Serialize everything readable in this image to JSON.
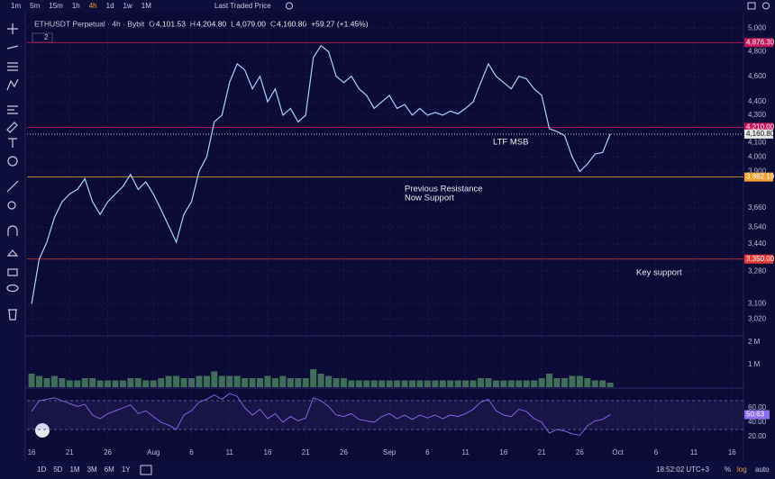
{
  "toolbar": {
    "intervals": [
      "1m",
      "5m",
      "15m",
      "1h",
      "4h",
      "1d",
      "1w",
      "1M"
    ],
    "active_interval": 4,
    "price_source": "Last Traded Price"
  },
  "header": {
    "symbol": "ETHUSDT Perpetual · 4h · Bybit",
    "o_key": "O",
    "o": "4,101.53",
    "h_key": "H",
    "h": "4,204.80",
    "l_key": "L",
    "l": "4,079.00",
    "c_key": "C",
    "c": "4,160.80",
    "change": "+59.27 (+1.45%)",
    "badge": "2"
  },
  "footer": {
    "ranges": [
      "1D",
      "5D",
      "1M",
      "3M",
      "6M",
      "1Y"
    ],
    "clock": "18:52:02 UTC+3",
    "percent": "%",
    "log": "log",
    "auto": "auto"
  },
  "chart_data": [
    {
      "type": "line",
      "log_scale": true,
      "color": "#a8d4ff",
      "xlim": [
        -0.6,
        93.5
      ],
      "xticks": [
        {
          "value": 0,
          "label": "16"
        },
        {
          "value": 5,
          "label": "21"
        },
        {
          "value": 10,
          "label": "26"
        },
        {
          "value": 16,
          "label": "Aug"
        },
        {
          "value": 21,
          "label": "6"
        },
        {
          "value": 26,
          "label": "11"
        },
        {
          "value": 31,
          "label": "16"
        },
        {
          "value": 36,
          "label": "21"
        },
        {
          "value": 41,
          "label": "26"
        },
        {
          "value": 47,
          "label": "Sep"
        },
        {
          "value": 52,
          "label": "6"
        },
        {
          "value": 57,
          "label": "11"
        },
        {
          "value": 62,
          "label": "16"
        },
        {
          "value": 67,
          "label": "21"
        },
        {
          "value": 72,
          "label": "26"
        },
        {
          "value": 77,
          "label": "Oct"
        },
        {
          "value": 82,
          "label": "6"
        },
        {
          "value": 87,
          "label": "11"
        },
        {
          "value": 92,
          "label": "16"
        }
      ],
      "ylim": [
        2937,
        5057
      ],
      "yticks": [
        {
          "value": 5000,
          "label": "5,000"
        },
        {
          "value": 4800,
          "label": "4,800"
        },
        {
          "value": 4600,
          "label": "4,600"
        },
        {
          "value": 4400,
          "label": "4,400"
        },
        {
          "value": 4300,
          "label": "4,300"
        },
        {
          "value": 4100,
          "label": "4,100"
        },
        {
          "value": 4000,
          "label": "4,000"
        },
        {
          "value": 3900,
          "label": "3,900"
        },
        {
          "value": 3660,
          "label": "3,660"
        },
        {
          "value": 3540,
          "label": "3,540"
        },
        {
          "value": 3440,
          "label": "3,440"
        },
        {
          "value": 3280,
          "label": "3,280"
        },
        {
          "value": 3100,
          "label": "3,100"
        },
        {
          "value": 3020,
          "label": "3,020"
        }
      ],
      "grid": true,
      "x": [
        0,
        1,
        2,
        3,
        4,
        5,
        6,
        7,
        8,
        9,
        10,
        11,
        12,
        13,
        14,
        15,
        16,
        17,
        18,
        19,
        20,
        21,
        22,
        23,
        24,
        25,
        26,
        27,
        28,
        29,
        30,
        31,
        32,
        33,
        34,
        35,
        36,
        37,
        38,
        39,
        40,
        41,
        42,
        43,
        44,
        45,
        46,
        47,
        48,
        49,
        50,
        51,
        52,
        53,
        54,
        55,
        56,
        57,
        58,
        59,
        60,
        61,
        62,
        63,
        64,
        65,
        66,
        67,
        68,
        69,
        70,
        71,
        72,
        73,
        74,
        75,
        76
      ],
      "values": [
        3100,
        3350,
        3450,
        3600,
        3700,
        3750,
        3780,
        3850,
        3700,
        3620,
        3700,
        3750,
        3800,
        3880,
        3780,
        3830,
        3750,
        3650,
        3550,
        3450,
        3620,
        3700,
        3900,
        4000,
        4250,
        4300,
        4550,
        4700,
        4650,
        4500,
        4600,
        4400,
        4500,
        4300,
        4350,
        4250,
        4300,
        4750,
        4850,
        4800,
        4600,
        4550,
        4600,
        4500,
        4450,
        4350,
        4400,
        4450,
        4350,
        4380,
        4300,
        4350,
        4300,
        4320,
        4300,
        4330,
        4310,
        4350,
        4400,
        4550,
        4700,
        4600,
        4550,
        4500,
        4600,
        4580,
        4500,
        4450,
        4200,
        4180,
        4150,
        4000,
        3900,
        3950,
        4020,
        4030,
        4160.8
      ],
      "levels": [
        {
          "value": 4876.3,
          "label": "4,876.30",
          "color": "#c2185b"
        },
        {
          "value": 4210,
          "label": "4,210.00",
          "color": "#c2185b"
        },
        {
          "value": 4160.8,
          "label": "4,160.80",
          "color": "#e6e6e6"
        },
        {
          "value": 3862.19,
          "label": "3,862.19",
          "color": "#f0a030"
        },
        {
          "value": 3350,
          "label": "3,350.00",
          "color": "#e53935"
        }
      ],
      "annotations": [
        {
          "text": "LTF MSB"
        },
        {
          "text": "Previous Resistance"
        },
        {
          "text": "Now Support"
        },
        {
          "text": "Key support"
        }
      ]
    },
    {
      "type": "bar",
      "color": "#3f6f5a",
      "ylim": [
        0,
        2.2
      ],
      "yticks": [
        {
          "value": 2,
          "label": "2 M"
        },
        {
          "value": 1,
          "label": "1 M"
        }
      ],
      "x": [
        0,
        1,
        2,
        3,
        4,
        5,
        6,
        7,
        8,
        9,
        10,
        11,
        12,
        13,
        14,
        15,
        16,
        17,
        18,
        19,
        20,
        21,
        22,
        23,
        24,
        25,
        26,
        27,
        28,
        29,
        30,
        31,
        32,
        33,
        34,
        35,
        36,
        37,
        38,
        39,
        40,
        41,
        42,
        43,
        44,
        45,
        46,
        47,
        48,
        49,
        50,
        51,
        52,
        53,
        54,
        55,
        56,
        57,
        58,
        59,
        60,
        61,
        62,
        63,
        64,
        65,
        66,
        67,
        68,
        69,
        70,
        71,
        72,
        73,
        74,
        75,
        76
      ],
      "values": [
        0.6,
        0.5,
        0.4,
        0.5,
        0.4,
        0.3,
        0.3,
        0.4,
        0.4,
        0.3,
        0.3,
        0.3,
        0.3,
        0.4,
        0.4,
        0.3,
        0.3,
        0.4,
        0.5,
        0.5,
        0.4,
        0.4,
        0.5,
        0.5,
        0.7,
        0.5,
        0.5,
        0.5,
        0.4,
        0.4,
        0.4,
        0.5,
        0.4,
        0.5,
        0.4,
        0.4,
        0.4,
        0.8,
        0.6,
        0.5,
        0.4,
        0.4,
        0.3,
        0.3,
        0.3,
        0.3,
        0.3,
        0.3,
        0.3,
        0.3,
        0.3,
        0.3,
        0.3,
        0.3,
        0.3,
        0.3,
        0.3,
        0.3,
        0.3,
        0.4,
        0.4,
        0.3,
        0.3,
        0.3,
        0.3,
        0.3,
        0.3,
        0.4,
        0.6,
        0.4,
        0.4,
        0.5,
        0.5,
        0.4,
        0.3,
        0.3,
        0.2
      ]
    },
    {
      "type": "line",
      "color": "#8e6cf0",
      "ylim": [
        11.25,
        86.25
      ],
      "band": [
        30,
        70
      ],
      "yticks": [
        {
          "value": 60,
          "label": "60.00"
        },
        {
          "value": 40,
          "label": "40.00"
        },
        {
          "value": 20,
          "label": "20.00"
        }
      ],
      "x": [
        0,
        1,
        2,
        3,
        4,
        5,
        6,
        7,
        8,
        9,
        10,
        11,
        12,
        13,
        14,
        15,
        16,
        17,
        18,
        19,
        20,
        21,
        22,
        23,
        24,
        25,
        26,
        27,
        28,
        29,
        30,
        31,
        32,
        33,
        34,
        35,
        36,
        37,
        38,
        39,
        40,
        41,
        42,
        43,
        44,
        45,
        46,
        47,
        48,
        49,
        50,
        51,
        52,
        53,
        54,
        55,
        56,
        57,
        58,
        59,
        60,
        61,
        62,
        63,
        64,
        65,
        66,
        67,
        68,
        69,
        70,
        71,
        72,
        73,
        74,
        75,
        76
      ],
      "values": [
        55,
        70,
        72,
        74,
        70,
        66,
        62,
        65,
        50,
        45,
        52,
        56,
        60,
        64,
        52,
        56,
        48,
        40,
        36,
        30,
        50,
        56,
        68,
        72,
        78,
        72,
        80,
        76,
        60,
        50,
        58,
        45,
        52,
        40,
        48,
        42,
        46,
        74,
        70,
        62,
        50,
        48,
        52,
        44,
        42,
        40,
        48,
        52,
        45,
        50,
        44,
        50,
        46,
        50,
        45,
        50,
        48,
        52,
        58,
        68,
        72,
        56,
        50,
        48,
        58,
        55,
        45,
        40,
        25,
        30,
        28,
        24,
        22,
        35,
        42,
        44,
        50.63
      ]
    }
  ]
}
